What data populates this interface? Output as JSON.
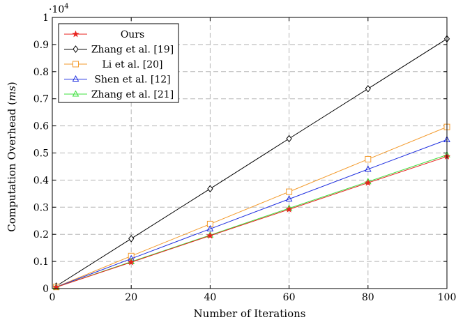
{
  "chart_data": {
    "type": "line",
    "xlabel": "Number of Iterations",
    "ylabel": "Computation Overhead (ms)",
    "ylabel_plain": "Computation Overhead (",
    "ylabel_unit": "ms",
    "ylabel_close": ")",
    "y_multiplier": "·10",
    "y_multiplier_exp": "4",
    "xlim": [
      0,
      100
    ],
    "ylim": [
      0,
      1
    ],
    "x_ticks": [
      0,
      20,
      40,
      60,
      80,
      100
    ],
    "y_ticks": [
      0,
      0.1,
      0.2,
      0.3,
      0.4,
      0.5,
      0.6,
      0.7,
      0.8,
      0.9,
      1
    ],
    "x_tick_labels": [
      "0",
      "20",
      "40",
      "60",
      "80",
      "100"
    ],
    "y_tick_labels": [
      "0",
      "0.1",
      "0.2",
      "0.3",
      "0.4",
      "0.5",
      "0.6",
      "0.7",
      "0.8",
      "0.9",
      "1"
    ],
    "grid": true,
    "legend_position": "top-left",
    "x": [
      1,
      20,
      40,
      60,
      80,
      100
    ],
    "series": [
      {
        "name": "Ours",
        "color": "#e8231f",
        "marker": "star",
        "values": [
          0.005,
          0.097,
          0.195,
          0.292,
          0.39,
          0.487
        ]
      },
      {
        "name": "Zhang et al. [19]",
        "color": "#000000",
        "marker": "diamond",
        "values": [
          0.009,
          0.184,
          0.368,
          0.553,
          0.737,
          0.921
        ]
      },
      {
        "name": "Li et al. [20]",
        "color": "#f39a2b",
        "marker": "square",
        "values": [
          0.006,
          0.12,
          0.238,
          0.357,
          0.477,
          0.596
        ]
      },
      {
        "name": "Shen et al. [12]",
        "color": "#1f2fe0",
        "marker": "triangle",
        "values": [
          0.0055,
          0.11,
          0.22,
          0.33,
          0.44,
          0.549
        ]
      },
      {
        "name": "Zhang et al. [21]",
        "color": "#3fe03f",
        "marker": "triangle",
        "values": [
          0.005,
          0.099,
          0.197,
          0.296,
          0.394,
          0.493
        ]
      }
    ]
  }
}
